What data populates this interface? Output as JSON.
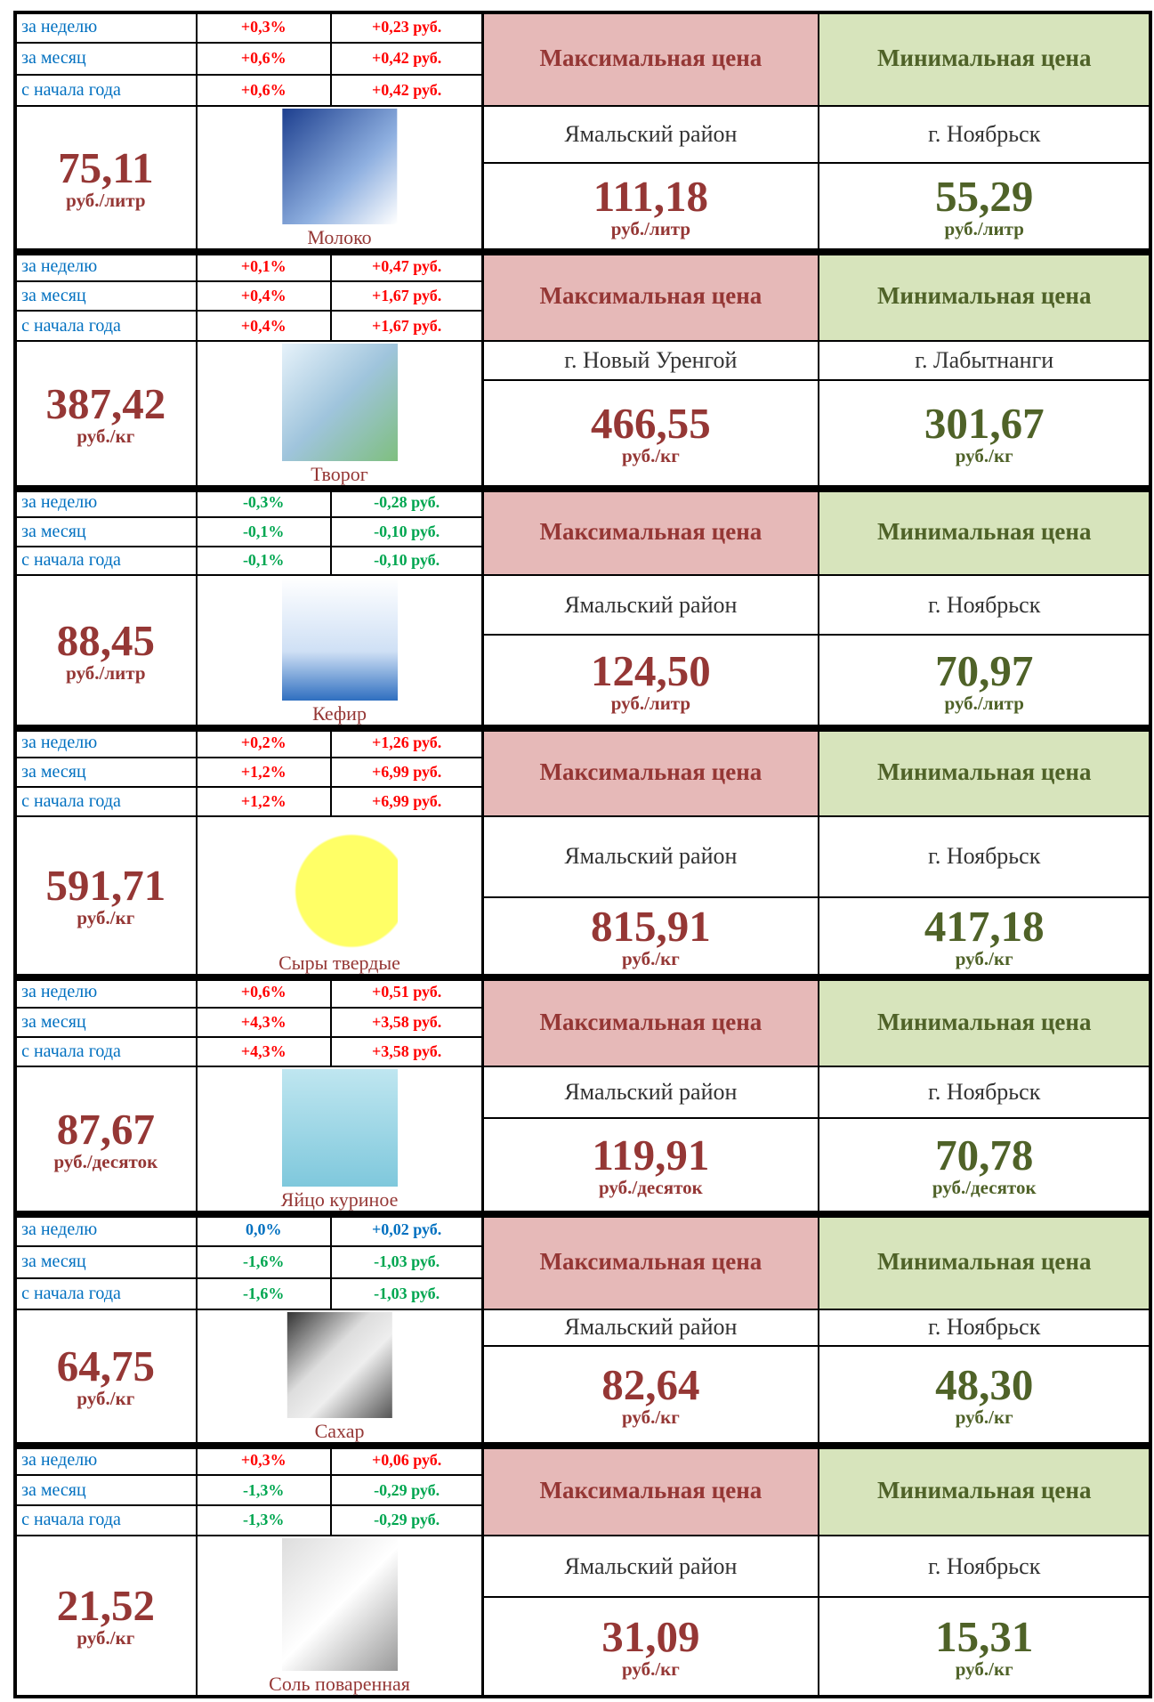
{
  "products": [
    {
      "name": "Молоко",
      "price": "75,11",
      "unit": "руб./литр",
      "changes": [
        {
          "period": "за неделю",
          "percent": "+0,3%",
          "rub": "+0,23 руб.",
          "color": "#ff0000"
        },
        {
          "period": "за месяц",
          "percent": "+0,6%",
          "rub": "+0,42 руб.",
          "color": "#ff0000"
        },
        {
          "period": "с начала года",
          "percent": "+0,6%",
          "rub": "+0,42 руб.",
          "color": "#ff0000"
        }
      ],
      "max": {
        "header": "Максимальная цена",
        "region": "Ямальский район",
        "price": "111,18",
        "unit": "руб./литр"
      },
      "min": {
        "header": "Минимальная цена",
        "region": "г. Ноябрьск",
        "price": "55,29",
        "unit": "руб./литр"
      }
    },
    {
      "name": "Творог",
      "price": "387,42",
      "unit": "руб./кг",
      "changes": [
        {
          "period": "за неделю",
          "percent": "+0,1%",
          "rub": "+0,47 руб.",
          "color": "#ff0000"
        },
        {
          "period": "за месяц",
          "percent": "+0,4%",
          "rub": "+1,67 руб.",
          "color": "#ff0000"
        },
        {
          "period": "с начала года",
          "percent": "+0,4%",
          "rub": "+1,67 руб.",
          "color": "#ff0000"
        }
      ],
      "max": {
        "header": "Максимальная цена",
        "region": "г. Новый Уренгой",
        "price": "466,55",
        "unit": "руб./кг"
      },
      "min": {
        "header": "Минимальная цена",
        "region": "г. Лабытнанги",
        "price": "301,67",
        "unit": "руб./кг"
      }
    },
    {
      "name": "Кефир",
      "price": "88,45",
      "unit": "руб./литр",
      "changes": [
        {
          "period": "за неделю",
          "percent": "-0,3%",
          "rub": "-0,28 руб.",
          "color": "#00a650"
        },
        {
          "period": "за месяц",
          "percent": "-0,1%",
          "rub": "-0,10 руб.",
          "color": "#00a650"
        },
        {
          "period": "с начала года",
          "percent": "-0,1%",
          "rub": "-0,10 руб.",
          "color": "#00a650"
        }
      ],
      "max": {
        "header": "Максимальная цена",
        "region": "Ямальский район",
        "price": "124,50",
        "unit": "руб./литр"
      },
      "min": {
        "header": "Минимальная цена",
        "region": "г. Ноябрьск",
        "price": "70,97",
        "unit": "руб./литр"
      }
    },
    {
      "name": "Сыры твердые",
      "price": "591,71",
      "unit": "руб./кг",
      "changes": [
        {
          "period": "за неделю",
          "percent": "+0,2%",
          "rub": "+1,26 руб.",
          "color": "#ff0000"
        },
        {
          "period": "за месяц",
          "percent": "+1,2%",
          "rub": "+6,99 руб.",
          "color": "#ff0000"
        },
        {
          "period": "с начала года",
          "percent": "+1,2%",
          "rub": "+6,99 руб.",
          "color": "#ff0000"
        }
      ],
      "max": {
        "header": "Максимальная цена",
        "region": "Ямальский район",
        "price": "815,91",
        "unit": "руб./кг"
      },
      "min": {
        "header": "Минимальная цена",
        "region": "г. Ноябрьск",
        "price": "417,18",
        "unit": "руб./кг"
      }
    },
    {
      "name": "Яйцо куриное",
      "price": "87,67",
      "unit": "руб./десяток",
      "changes": [
        {
          "period": "за неделю",
          "percent": "+0,6%",
          "rub": "+0,51 руб.",
          "color": "#ff0000"
        },
        {
          "period": "за месяц",
          "percent": "+4,3%",
          "rub": "+3,58 руб.",
          "color": "#ff0000"
        },
        {
          "period": "с начала года",
          "percent": "+4,3%",
          "rub": "+3,58 руб.",
          "color": "#ff0000"
        }
      ],
      "max": {
        "header": "Максимальная цена",
        "region": "Ямальский район",
        "price": "119,91",
        "unit": "руб./десяток"
      },
      "min": {
        "header": "Минимальная цена",
        "region": "г. Ноябрьск",
        "price": "70,78",
        "unit": "руб./десяток"
      }
    },
    {
      "name": "Сахар",
      "price": "64,75",
      "unit": "руб./кг",
      "changes": [
        {
          "period": "за неделю",
          "percent": "0,0%",
          "rub": "+0,02 руб.",
          "color": "#0070c0"
        },
        {
          "period": "за месяц",
          "percent": "-1,6%",
          "rub": "-1,03 руб.",
          "color": "#00a650"
        },
        {
          "period": "с начала года",
          "percent": "-1,6%",
          "rub": "-1,03 руб.",
          "color": "#00a650"
        }
      ],
      "max": {
        "header": "Максимальная цена",
        "region": "Ямальский район",
        "price": "82,64",
        "unit": "руб./кг"
      },
      "min": {
        "header": "Минимальная цена",
        "region": "г. Ноябрьск",
        "price": "48,30",
        "unit": "руб./кг"
      }
    },
    {
      "name": "Соль поваренная",
      "price": "21,52",
      "unit": "руб./кг",
      "changes": [
        {
          "period": "за неделю",
          "percent": "+0,3%",
          "rub": "+0,06 руб.",
          "color": "#ff0000"
        },
        {
          "period": "за месяц",
          "percent": "-1,3%",
          "rub": "-0,29 руб.",
          "color": "#00a650"
        },
        {
          "period": "с начала года",
          "percent": "-1,3%",
          "rub": "-0,29 руб.",
          "color": "#00a650"
        }
      ],
      "max": {
        "header": "Максимальная цена",
        "region": "Ямальский район",
        "price": "31,09",
        "unit": "руб./кг"
      },
      "min": {
        "header": "Минимальная цена",
        "region": "г. Ноябрьск",
        "price": "15,31",
        "unit": "руб./кг"
      }
    }
  ]
}
